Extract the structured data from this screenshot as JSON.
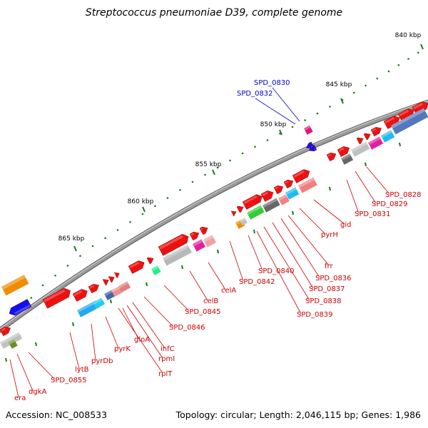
{
  "title": "Streptococcus pneumoniae D39, complete genome",
  "accession": "Accession: NC_008533",
  "stats": "Topology: circular; Length: 2,046,115 bp; Genes: 1,986",
  "ruler_labels": [
    "840 kbp",
    "845 kbp",
    "850 kbp",
    "855 kbp",
    "860 kbp",
    "865 kbp"
  ],
  "colors": {
    "forward_gene": "#ee1111",
    "reverse_gene": "#1111ee",
    "backbone": "#888888",
    "tick": "#1a7a1a",
    "red_label": "#cc0000",
    "blue_label": "#0000cc"
  },
  "blue_labels": [
    "SPD_0830",
    "SPD_0832"
  ],
  "red_labels": [
    "SPD_0828",
    "SPD_0829",
    "SPD_0831",
    "gid",
    "pyrH",
    "frr",
    "SPD_0836",
    "SPD_0837",
    "SPD_0838",
    "SPD_0839",
    "SPD_0840",
    "SPD_0842",
    "celA",
    "celB",
    "SPD_0845",
    "SPD_0846",
    "infC",
    "rpmI",
    "rplT",
    "gloA",
    "pyrK",
    "pyrDb",
    "lytB",
    "SPD_0855",
    "dgkA",
    "era"
  ]
}
